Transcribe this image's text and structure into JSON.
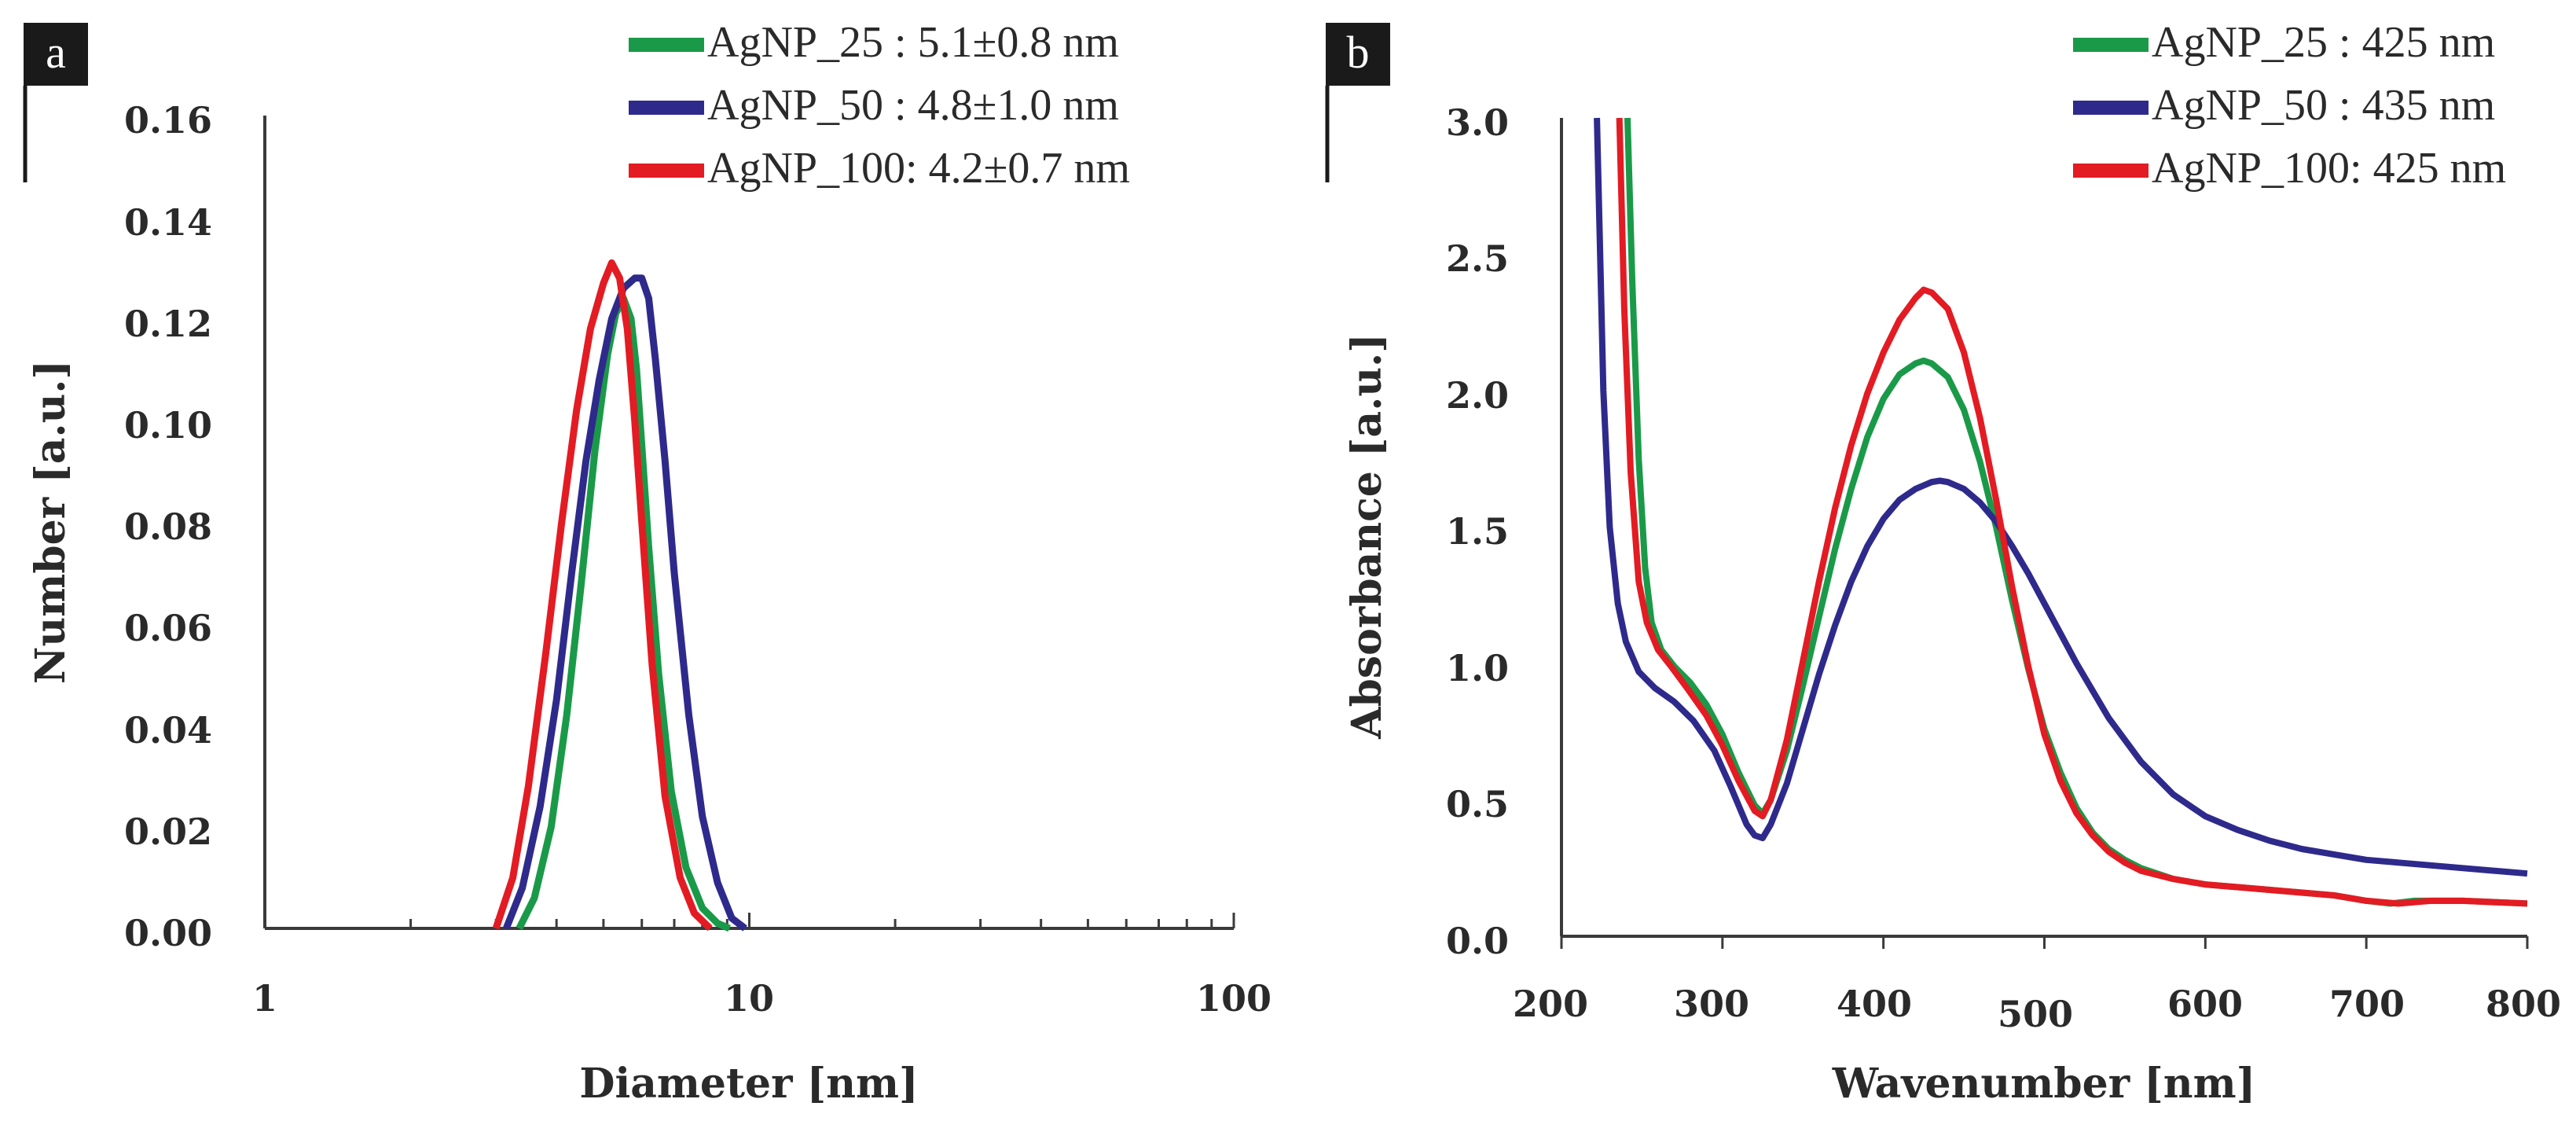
{
  "colors": {
    "green": "#1a9a48",
    "blue": "#2e2a8c",
    "red": "#e31b23",
    "axis": "#3a3a3a",
    "label_box": "#1a1a1a"
  },
  "chart_data": [
    {
      "panel": "a",
      "type": "line",
      "xscale": "log",
      "xlabel": "Diameter [nm]",
      "ylabel": "Number [a.u.]",
      "xlim": [
        1,
        100
      ],
      "ylim": [
        0,
        0.16
      ],
      "xticks": [
        "1",
        "10",
        "100"
      ],
      "yticks": [
        "0.00",
        "0.02",
        "0.04",
        "0.06",
        "0.08",
        "0.10",
        "0.12",
        "0.14",
        "0.16"
      ],
      "series": [
        {
          "name": "AgNP_25",
          "legend": "AgNP_25 : 5.1±0.8 nm",
          "color": "#1a9a48",
          "x": [
            3.35,
            3.6,
            3.9,
            4.2,
            4.5,
            4.8,
            5.1,
            5.3,
            5.5,
            5.7,
            5.85,
            6.0,
            6.2,
            6.5,
            6.9,
            7.4,
            8.0,
            8.6,
            9.1
          ],
          "y": [
            0.0,
            0.006,
            0.02,
            0.042,
            0.068,
            0.094,
            0.113,
            0.121,
            0.124,
            0.12,
            0.11,
            0.095,
            0.075,
            0.05,
            0.027,
            0.012,
            0.004,
            0.001,
            0.0
          ]
        },
        {
          "name": "AgNP_50",
          "legend": "AgNP_50 : 4.8±1.0 nm",
          "color": "#2e2a8c",
          "x": [
            3.15,
            3.4,
            3.7,
            4.0,
            4.3,
            4.6,
            4.9,
            5.2,
            5.5,
            5.8,
            6.0,
            6.2,
            6.4,
            6.7,
            7.0,
            7.5,
            8.0,
            8.6,
            9.2,
            9.8
          ],
          "y": [
            0.0,
            0.008,
            0.024,
            0.045,
            0.07,
            0.092,
            0.108,
            0.12,
            0.126,
            0.128,
            0.128,
            0.124,
            0.112,
            0.092,
            0.07,
            0.042,
            0.022,
            0.009,
            0.002,
            0.0
          ]
        },
        {
          "name": "AgNP_100",
          "legend": "AgNP_100: 4.2±0.7 nm",
          "color": "#e31b23",
          "x": [
            3.0,
            3.25,
            3.5,
            3.8,
            4.1,
            4.4,
            4.7,
            5.0,
            5.2,
            5.4,
            5.6,
            5.8,
            6.0,
            6.3,
            6.7,
            7.2,
            7.7,
            8.3
          ],
          "y": [
            0.0,
            0.01,
            0.028,
            0.054,
            0.08,
            0.102,
            0.118,
            0.127,
            0.131,
            0.128,
            0.118,
            0.1,
            0.08,
            0.052,
            0.026,
            0.01,
            0.003,
            0.0
          ]
        }
      ]
    },
    {
      "panel": "b",
      "type": "line",
      "xscale": "linear",
      "xlabel": "Wavenumber [nm]",
      "ylabel": "Absorbance [a.u.]",
      "xlim": [
        200,
        800
      ],
      "ylim": [
        0,
        3.0
      ],
      "xticks": [
        "200",
        "300",
        "400",
        "500",
        "600",
        "700",
        "800"
      ],
      "yticks": [
        "0.0",
        "0.5",
        "1.0",
        "1.5",
        "2.0",
        "2.5",
        "3.0"
      ],
      "series": [
        {
          "name": "AgNP_25",
          "legend": "AgNP_25 : 425 nm",
          "color": "#1a9a48",
          "x": [
            241,
            244,
            248,
            252,
            256,
            262,
            270,
            280,
            290,
            300,
            310,
            320,
            325,
            330,
            340,
            350,
            360,
            370,
            380,
            390,
            400,
            410,
            420,
            425,
            430,
            440,
            450,
            460,
            470,
            480,
            490,
            500,
            510,
            520,
            530,
            540,
            550,
            560,
            570,
            580,
            600,
            620,
            640,
            660,
            680,
            700,
            715,
            730,
            760,
            800
          ],
          "y": [
            3.0,
            2.4,
            1.75,
            1.35,
            1.15,
            1.05,
            0.99,
            0.93,
            0.85,
            0.74,
            0.6,
            0.48,
            0.45,
            0.5,
            0.68,
            0.92,
            1.17,
            1.42,
            1.64,
            1.83,
            1.97,
            2.06,
            2.1,
            2.11,
            2.1,
            2.05,
            1.93,
            1.74,
            1.5,
            1.23,
            0.98,
            0.76,
            0.6,
            0.47,
            0.38,
            0.32,
            0.28,
            0.25,
            0.23,
            0.21,
            0.19,
            0.18,
            0.17,
            0.16,
            0.15,
            0.13,
            0.12,
            0.13,
            0.13,
            0.12
          ]
        },
        {
          "name": "AgNP_50",
          "legend": "AgNP_50 : 435 nm",
          "color": "#2e2a8c",
          "x": [
            222,
            226,
            230,
            235,
            240,
            248,
            258,
            270,
            282,
            295,
            305,
            315,
            320,
            325,
            330,
            340,
            350,
            360,
            370,
            380,
            390,
            400,
            410,
            420,
            430,
            435,
            440,
            450,
            460,
            470,
            480,
            490,
            500,
            510,
            520,
            540,
            560,
            580,
            600,
            620,
            640,
            660,
            680,
            700,
            720,
            740,
            760,
            800
          ],
          "y": [
            3.0,
            2.0,
            1.5,
            1.22,
            1.08,
            0.97,
            0.91,
            0.86,
            0.79,
            0.68,
            0.55,
            0.41,
            0.37,
            0.36,
            0.41,
            0.56,
            0.76,
            0.96,
            1.14,
            1.3,
            1.43,
            1.53,
            1.6,
            1.64,
            1.665,
            1.67,
            1.665,
            1.64,
            1.59,
            1.52,
            1.43,
            1.33,
            1.22,
            1.11,
            1.0,
            0.8,
            0.64,
            0.52,
            0.44,
            0.39,
            0.35,
            0.32,
            0.3,
            0.28,
            0.27,
            0.26,
            0.25,
            0.23
          ]
        },
        {
          "name": "AgNP_100",
          "legend": "AgNP_100: 425 nm",
          "color": "#e31b23",
          "x": [
            236,
            239,
            243,
            248,
            253,
            260,
            268,
            278,
            290,
            300,
            310,
            320,
            325,
            330,
            340,
            350,
            360,
            370,
            380,
            390,
            400,
            410,
            420,
            425,
            430,
            440,
            450,
            460,
            470,
            480,
            490,
            500,
            510,
            520,
            530,
            540,
            550,
            560,
            580,
            600,
            620,
            640,
            660,
            680,
            700,
            720,
            740,
            760,
            800
          ],
          "y": [
            3.0,
            2.3,
            1.7,
            1.3,
            1.15,
            1.05,
            0.99,
            0.91,
            0.81,
            0.7,
            0.57,
            0.46,
            0.44,
            0.5,
            0.72,
            1.01,
            1.3,
            1.57,
            1.8,
            1.99,
            2.14,
            2.26,
            2.34,
            2.37,
            2.36,
            2.3,
            2.14,
            1.9,
            1.6,
            1.28,
            0.99,
            0.74,
            0.57,
            0.45,
            0.37,
            0.31,
            0.27,
            0.24,
            0.21,
            0.19,
            0.18,
            0.17,
            0.16,
            0.15,
            0.13,
            0.12,
            0.13,
            0.13,
            0.12
          ]
        }
      ]
    }
  ]
}
